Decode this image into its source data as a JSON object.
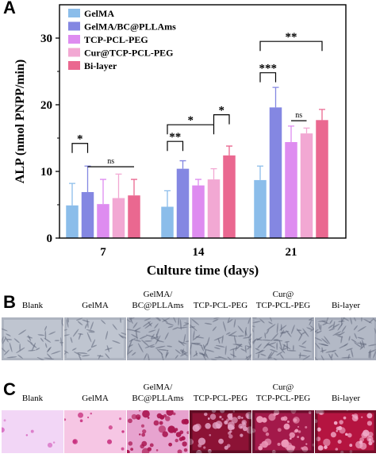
{
  "panels": {
    "a": "A",
    "b": "B",
    "c": "C"
  },
  "chart_data": {
    "type": "bar",
    "xlabel": "Culture time (days)",
    "ylabel": "ALP (nmol PNPP/min)",
    "categories": [
      "7",
      "14",
      "21"
    ],
    "ylim": [
      0,
      35
    ],
    "yticks": [
      0,
      10,
      20,
      30
    ],
    "legend_position": "top-left",
    "series": [
      {
        "name": "GelMA",
        "color": "#8bbdea",
        "values": [
          4.9,
          4.7,
          8.7
        ],
        "errors": [
          3.3,
          2.4,
          2.1
        ]
      },
      {
        "name": "GelMA/BC@PLLAms",
        "color": "#8487e2",
        "values": [
          6.9,
          10.4,
          19.6
        ],
        "errors": [
          3.9,
          1.2,
          3.0
        ]
      },
      {
        "name": "TCP-PCL-PEG",
        "color": "#de8cf0",
        "values": [
          5.1,
          7.9,
          14.4
        ],
        "errors": [
          3.7,
          0.9,
          2.4
        ]
      },
      {
        "name": "Cur@TCP-PCL-PEG",
        "color": "#f2a8d3",
        "values": [
          6.0,
          8.8,
          15.7
        ],
        "errors": [
          3.6,
          1.6,
          0.8
        ]
      },
      {
        "name": "Bi-layer",
        "color": "#ea6890",
        "values": [
          6.4,
          12.4,
          17.7
        ],
        "errors": [
          2.4,
          1.4,
          1.6
        ]
      }
    ],
    "annotations": [
      {
        "label": "*",
        "group": 0,
        "from": 0,
        "to": 1,
        "level": 14.2
      },
      {
        "label": "ns",
        "group": 0,
        "from": 1,
        "to": 4,
        "level": 10.7
      },
      {
        "label": "**",
        "group": 1,
        "from": 0,
        "to": 1,
        "level": 14.5
      },
      {
        "label": "*",
        "group": 1,
        "from": 0,
        "to": 3,
        "level": 17.0
      },
      {
        "label": "*",
        "group": 1,
        "from": 3,
        "to": 4,
        "level": 18.5
      },
      {
        "label": "***",
        "group": 2,
        "from": 0,
        "to": 1,
        "level": 24.8
      },
      {
        "label": "**",
        "group": 2,
        "from": 0,
        "to": 4,
        "level": 29.5
      },
      {
        "label": "ns",
        "group": 2,
        "from": 2,
        "to": 3,
        "level": 17.6
      }
    ]
  },
  "panel_b": {
    "labels": [
      {
        "line1": "",
        "line2": "Blank"
      },
      {
        "line1": "",
        "line2": "GelMA"
      },
      {
        "line1": "GelMA/",
        "line2": "BC@PLLAms"
      },
      {
        "line1": "",
        "line2": "TCP-PCL-PEG"
      },
      {
        "line1": "Cur@",
        "line2": "TCP-PCL-PEG"
      },
      {
        "line1": "",
        "line2": "Bi-layer"
      }
    ]
  },
  "panel_c": {
    "labels": [
      {
        "line1": "",
        "line2": "Blank"
      },
      {
        "line1": "",
        "line2": "GelMA"
      },
      {
        "line1": "GelMA/",
        "line2": "BC@PLLAms"
      },
      {
        "line1": "",
        "line2": "TCP-PCL-PEG"
      },
      {
        "line1": "Cur@",
        "line2": "TCP-PCL-PEG"
      },
      {
        "line1": "",
        "line2": "Bi-layer"
      }
    ]
  }
}
